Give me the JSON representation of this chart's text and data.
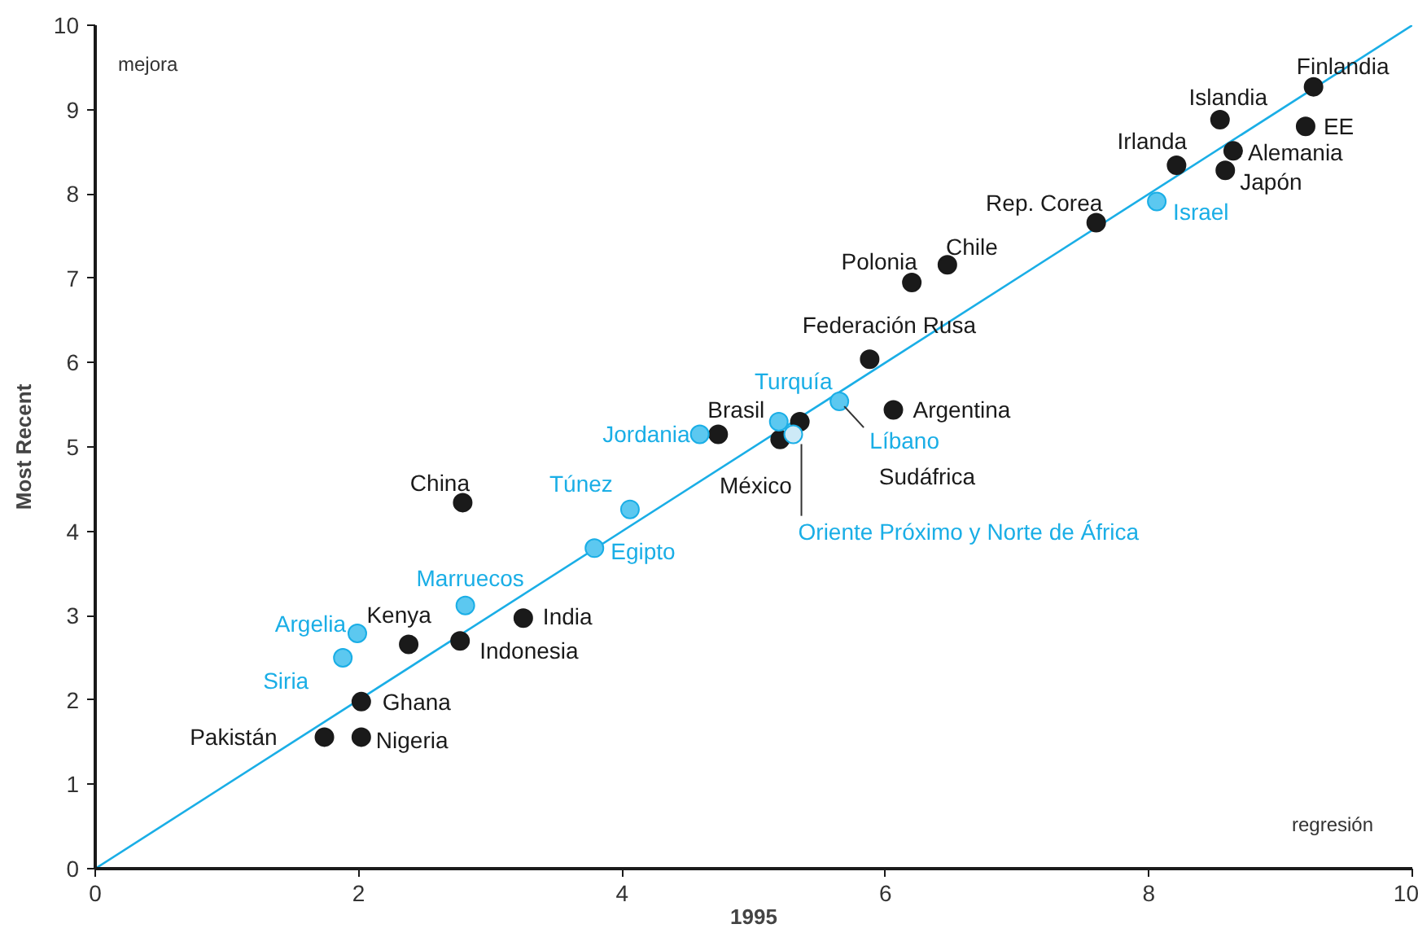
{
  "chart_data": {
    "type": "scatter",
    "xlabel": "1995",
    "ylabel": "Most Recent",
    "xlim": [
      0,
      10
    ],
    "ylim": [
      0,
      10
    ],
    "xticks": [
      0,
      2,
      4,
      6,
      8,
      10
    ],
    "yticks": [
      0,
      1,
      2,
      3,
      4,
      5,
      6,
      7,
      8,
      9,
      10
    ],
    "grid": false,
    "marker": "circle",
    "series": [
      {
        "type": "line",
        "marker": "none",
        "color": "#1aaee6",
        "x": [
          0,
          10
        ],
        "values": [
          0,
          10
        ]
      },
      {
        "color": "#1a1a1a",
        "x": [
          9.25,
          8.54,
          9.19,
          8.64,
          8.58,
          8.21,
          7.6,
          6.47,
          6.2,
          5.88,
          6.06,
          4.73,
          5.2,
          5.35,
          2.79,
          3.25,
          2.77,
          2.38,
          2.02,
          2.02,
          1.74
        ],
        "values": [
          9.27,
          8.88,
          8.8,
          8.51,
          8.28,
          8.34,
          7.66,
          7.16,
          6.95,
          6.04,
          5.44,
          5.15,
          5.09,
          5.3,
          4.34,
          2.97,
          2.7,
          2.66,
          1.98,
          1.56,
          1.56
        ]
      },
      {
        "color": "#5cc8f0",
        "x": [
          8.06,
          5.65,
          5.19,
          4.59,
          4.06,
          3.79,
          2.81,
          1.99,
          1.88
        ],
        "values": [
          7.91,
          5.54,
          5.3,
          5.15,
          4.26,
          3.8,
          3.12,
          2.79,
          2.5
        ]
      },
      {
        "color": "#cdeaf7",
        "x": [
          5.3
        ],
        "values": [
          5.15
        ]
      }
    ],
    "annotations": [
      "mejora",
      "regresión",
      "Sudáfrica",
      {
        "text": "Finlandia",
        "x": 9.25,
        "y": 9.27
      },
      {
        "text": "Islandia",
        "x": 8.54,
        "y": 8.88
      },
      {
        "text": "EE",
        "x": 9.19,
        "y": 8.8
      },
      {
        "text": "Alemania",
        "x": 8.64,
        "y": 8.51
      },
      {
        "text": "Japón",
        "x": 8.58,
        "y": 8.28
      },
      {
        "text": "Irlanda",
        "x": 8.21,
        "y": 8.34
      },
      {
        "text": "Rep. Corea",
        "x": 7.6,
        "y": 7.66
      },
      {
        "text": "Chile",
        "x": 6.47,
        "y": 7.16
      },
      {
        "text": "Polonia",
        "x": 6.2,
        "y": 6.95
      },
      {
        "text": "Federación Rusa",
        "x": 5.88,
        "y": 6.04
      },
      {
        "text": "Argentina",
        "x": 6.06,
        "y": 5.44
      },
      {
        "text": "Brasil",
        "x": 4.73,
        "y": 5.15
      },
      {
        "text": "México",
        "x": 5.2,
        "y": 5.09
      },
      {
        "text": "China",
        "x": 2.79,
        "y": 4.34
      },
      {
        "text": "India",
        "x": 3.25,
        "y": 2.97
      },
      {
        "text": "Indonesia",
        "x": 2.77,
        "y": 2.7
      },
      {
        "text": "Kenya",
        "x": 2.38,
        "y": 2.66
      },
      {
        "text": "Ghana",
        "x": 2.02,
        "y": 1.98
      },
      {
        "text": "Nigeria",
        "x": 2.02,
        "y": 1.56
      },
      {
        "text": "Pakistán",
        "x": 1.74,
        "y": 1.56
      },
      {
        "text": "Israel",
        "x": 8.06,
        "y": 7.91
      },
      {
        "text": "Líbano",
        "x": 5.65,
        "y": 5.54
      },
      {
        "text": "Turquía",
        "x": 5.19,
        "y": 5.3
      },
      {
        "text": "Jordania",
        "x": 4.59,
        "y": 5.15
      },
      {
        "text": "Túnez",
        "x": 4.06,
        "y": 4.26
      },
      {
        "text": "Egipto",
        "x": 3.79,
        "y": 3.8
      },
      {
        "text": "Marruecos",
        "x": 2.81,
        "y": 3.12
      },
      {
        "text": "Argelia",
        "x": 1.99,
        "y": 2.79
      },
      {
        "text": "Siria",
        "x": 1.88,
        "y": 2.5
      },
      {
        "text": "Oriente Próximo y Norte de África",
        "x": 5.3,
        "y": 5.15
      }
    ]
  }
}
